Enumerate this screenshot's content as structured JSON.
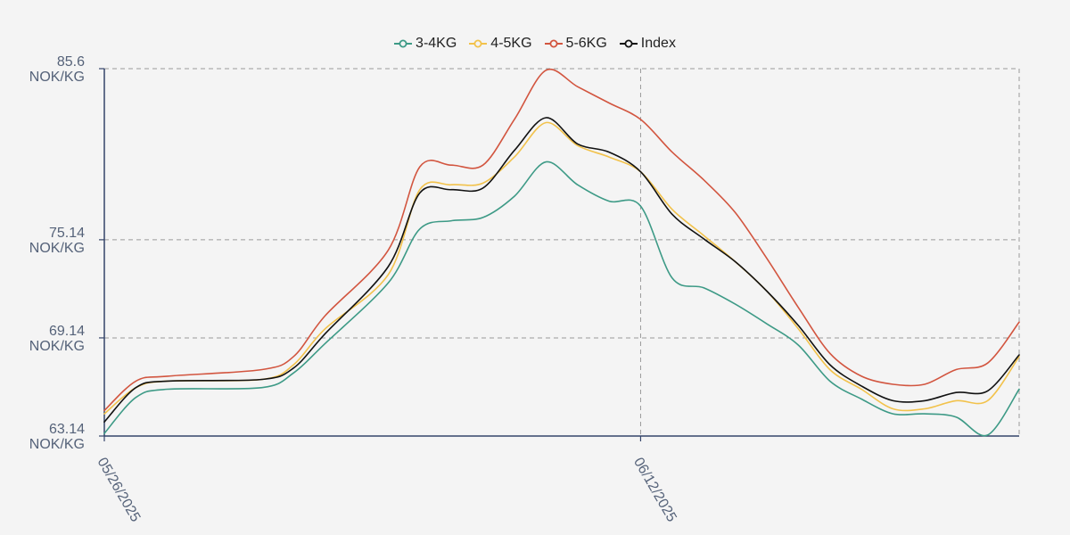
{
  "chart_data": {
    "type": "line",
    "x_start": "05/26/2025",
    "x_end": "06/24/2025",
    "x_ticks": [
      "05/26/2025",
      "06/12/2025"
    ],
    "y_ticks": [
      {
        "value": 63.14,
        "label": "63.14",
        "unit": "NOK/KG"
      },
      {
        "value": 69.14,
        "label": "69.14",
        "unit": "NOK/KG"
      },
      {
        "value": 75.14,
        "label": "75.14",
        "unit": "NOK/KG"
      },
      {
        "value": 85.6,
        "label": "85.6",
        "unit": "NOK/KG"
      }
    ],
    "ylim": [
      63.14,
      85.6
    ],
    "grid": true,
    "legend_position": "top-center",
    "series": [
      {
        "name": "3-4KG",
        "color": "#3d9a86",
        "points": [
          [
            "05/26/2025",
            63.3
          ],
          [
            "05/27/2025",
            65.5
          ],
          [
            "05/28/2025",
            66.0
          ],
          [
            "05/31/2025",
            66.1
          ],
          [
            "06/01/2025",
            67.0
          ],
          [
            "06/02/2025",
            68.8
          ],
          [
            "06/04/2025",
            72.5
          ],
          [
            "06/05/2025",
            75.8
          ],
          [
            "06/06/2025",
            76.3
          ],
          [
            "06/07/2025",
            76.5
          ],
          [
            "06/08/2025",
            77.8
          ],
          [
            "06/09/2025",
            79.9
          ],
          [
            "06/10/2025",
            78.5
          ],
          [
            "06/11/2025",
            77.5
          ],
          [
            "06/12/2025",
            77.2
          ],
          [
            "06/13/2025",
            72.8
          ],
          [
            "06/14/2025",
            72.2
          ],
          [
            "06/15/2025",
            71.2
          ],
          [
            "06/16/2025",
            70.0
          ],
          [
            "06/17/2025",
            68.7
          ],
          [
            "06/18/2025",
            66.5
          ],
          [
            "06/19/2025",
            65.4
          ],
          [
            "06/20/2025",
            64.5
          ],
          [
            "06/21/2025",
            64.5
          ],
          [
            "06/22/2025",
            64.3
          ],
          [
            "06/23/2025",
            63.2
          ],
          [
            "06/24/2025",
            66.0
          ]
        ]
      },
      {
        "name": "4-5KG",
        "color": "#f2c24b",
        "points": [
          [
            "05/26/2025",
            64.5
          ],
          [
            "05/27/2025",
            66.1
          ],
          [
            "05/28/2025",
            66.5
          ],
          [
            "05/31/2025",
            66.6
          ],
          [
            "06/01/2025",
            67.5
          ],
          [
            "06/02/2025",
            69.7
          ],
          [
            "06/04/2025",
            73.0
          ],
          [
            "06/05/2025",
            78.2
          ],
          [
            "06/06/2025",
            78.5
          ],
          [
            "06/07/2025",
            78.6
          ],
          [
            "06/08/2025",
            80.2
          ],
          [
            "06/09/2025",
            82.3
          ],
          [
            "06/10/2025",
            80.9
          ],
          [
            "06/11/2025",
            80.2
          ],
          [
            "06/12/2025",
            79.3
          ],
          [
            "06/13/2025",
            77.0
          ],
          [
            "06/14/2025",
            75.4
          ],
          [
            "06/15/2025",
            73.8
          ],
          [
            "06/16/2025",
            72.0
          ],
          [
            "06/17/2025",
            69.7
          ],
          [
            "06/18/2025",
            67.2
          ],
          [
            "06/19/2025",
            66.0
          ],
          [
            "06/20/2025",
            64.8
          ],
          [
            "06/21/2025",
            64.8
          ],
          [
            "06/22/2025",
            65.3
          ],
          [
            "06/23/2025",
            65.3
          ],
          [
            "06/24/2025",
            68.0
          ]
        ]
      },
      {
        "name": "5-6KG",
        "color": "#d2553f",
        "points": [
          [
            "05/26/2025",
            64.7
          ],
          [
            "05/27/2025",
            66.5
          ],
          [
            "05/28/2025",
            66.8
          ],
          [
            "05/31/2025",
            67.2
          ],
          [
            "06/01/2025",
            68.0
          ],
          [
            "06/02/2025",
            70.5
          ],
          [
            "06/04/2025",
            74.5
          ],
          [
            "06/05/2025",
            79.6
          ],
          [
            "06/06/2025",
            79.7
          ],
          [
            "06/07/2025",
            79.7
          ],
          [
            "06/08/2025",
            82.5
          ],
          [
            "06/09/2025",
            85.5
          ],
          [
            "06/10/2025",
            84.5
          ],
          [
            "06/11/2025",
            83.5
          ],
          [
            "06/12/2025",
            82.5
          ],
          [
            "06/13/2025",
            80.5
          ],
          [
            "06/14/2025",
            78.8
          ],
          [
            "06/15/2025",
            76.8
          ],
          [
            "06/16/2025",
            74.0
          ],
          [
            "06/17/2025",
            71.0
          ],
          [
            "06/18/2025",
            68.2
          ],
          [
            "06/19/2025",
            66.8
          ],
          [
            "06/20/2025",
            66.3
          ],
          [
            "06/21/2025",
            66.3
          ],
          [
            "06/22/2025",
            67.2
          ],
          [
            "06/23/2025",
            67.6
          ],
          [
            "06/24/2025",
            70.1
          ]
        ]
      },
      {
        "name": "Index",
        "color": "#111111",
        "points": [
          [
            "05/26/2025",
            64.0
          ],
          [
            "05/27/2025",
            66.1
          ],
          [
            "05/28/2025",
            66.5
          ],
          [
            "05/31/2025",
            66.6
          ],
          [
            "06/01/2025",
            67.3
          ],
          [
            "06/02/2025",
            69.4
          ],
          [
            "06/04/2025",
            73.5
          ],
          [
            "06/05/2025",
            78.0
          ],
          [
            "06/06/2025",
            78.2
          ],
          [
            "06/07/2025",
            78.3
          ],
          [
            "06/08/2025",
            80.6
          ],
          [
            "06/09/2025",
            82.6
          ],
          [
            "06/10/2025",
            81.0
          ],
          [
            "06/11/2025",
            80.5
          ],
          [
            "06/12/2025",
            79.3
          ],
          [
            "06/13/2025",
            76.7
          ],
          [
            "06/14/2025",
            75.2
          ],
          [
            "06/15/2025",
            73.8
          ],
          [
            "06/16/2025",
            72.0
          ],
          [
            "06/17/2025",
            69.9
          ],
          [
            "06/18/2025",
            67.5
          ],
          [
            "06/19/2025",
            66.2
          ],
          [
            "06/20/2025",
            65.3
          ],
          [
            "06/21/2025",
            65.3
          ],
          [
            "06/22/2025",
            65.8
          ],
          [
            "06/23/2025",
            65.9
          ],
          [
            "06/24/2025",
            68.1
          ]
        ]
      }
    ]
  },
  "colors": {
    "axis": "#35456a",
    "grid": "#9a9a9a",
    "tick_label": "#556279",
    "background": "#f4f4f4"
  }
}
